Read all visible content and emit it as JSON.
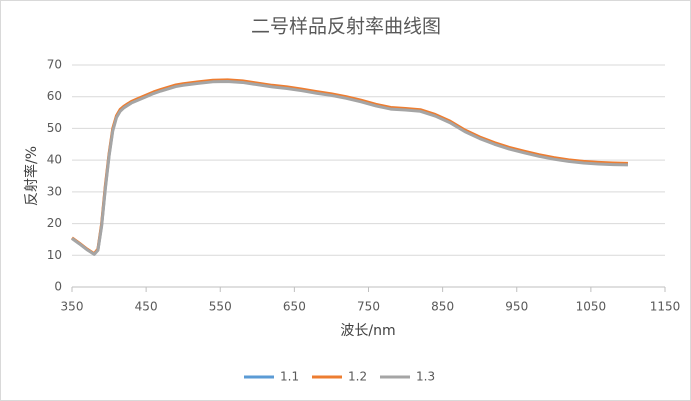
{
  "chart_data": {
    "type": "line",
    "title": "二号样品反射率曲线图",
    "x_label": "波长/nm",
    "y_label": "反射率/%",
    "x": [
      350,
      360,
      370,
      380,
      385,
      390,
      395,
      400,
      405,
      410,
      415,
      420,
      430,
      440,
      450,
      460,
      470,
      480,
      490,
      500,
      520,
      540,
      560,
      580,
      600,
      620,
      640,
      660,
      680,
      700,
      720,
      740,
      760,
      780,
      800,
      820,
      840,
      860,
      880,
      900,
      920,
      940,
      960,
      980,
      1000,
      1020,
      1040,
      1060,
      1080,
      1100
    ],
    "series": [
      {
        "name": "1.1",
        "color": "#5b9bd5",
        "values": [
          15.4,
          13.7,
          11.9,
          10.4,
          11.8,
          19.6,
          31.5,
          41.6,
          49.6,
          53.7,
          55.7,
          56.8,
          58.3,
          59.3,
          60.3,
          61.3,
          62.1,
          62.8,
          63.5,
          63.9,
          64.5,
          65,
          65.1,
          64.8,
          64.1,
          63.4,
          62.9,
          62.2,
          61.4,
          60.7,
          59.8,
          58.7,
          57.4,
          56.4,
          56.1,
          55.7,
          54.2,
          52.1,
          49.3,
          47.1,
          45.3,
          43.8,
          42.6,
          41.5,
          40.6,
          39.9,
          39.4,
          39.1,
          38.9,
          38.8
        ]
      },
      {
        "name": "1.2",
        "color": "#ed7d31",
        "values": [
          15.5,
          13.8,
          12,
          10.5,
          12,
          20,
          32,
          42,
          50,
          54,
          56,
          57,
          58.5,
          59.5,
          60.5,
          61.5,
          62.3,
          63,
          63.7,
          64.1,
          64.7,
          65.2,
          65.3,
          65,
          64.3,
          63.6,
          63.1,
          62.4,
          61.6,
          60.9,
          60,
          58.9,
          57.6,
          56.6,
          56.3,
          55.9,
          54.4,
          52.3,
          49.5,
          47.3,
          45.5,
          44,
          42.8,
          41.7,
          40.8,
          40.1,
          39.6,
          39.3,
          39.1,
          39
        ]
      },
      {
        "name": "1.3",
        "color": "#a5a5a5",
        "values": [
          15.3,
          13.6,
          11.8,
          10.3,
          11.6,
          19.2,
          31,
          41.2,
          49.2,
          53.4,
          55.4,
          56.5,
          58,
          59,
          60,
          61,
          61.8,
          62.5,
          63.2,
          63.6,
          64.2,
          64.7,
          64.8,
          64.5,
          63.8,
          63.1,
          62.6,
          61.9,
          61.1,
          60.4,
          59.5,
          58.4,
          57.1,
          56.1,
          55.8,
          55.4,
          53.9,
          51.8,
          49,
          46.8,
          45,
          43.5,
          42.3,
          41.2,
          40.3,
          39.6,
          39.1,
          38.8,
          38.6,
          38.5
        ]
      }
    ],
    "xlim": [
      350,
      1150
    ],
    "xticks": [
      350,
      450,
      550,
      650,
      750,
      850,
      950,
      1050,
      1150
    ],
    "ylim": [
      0,
      70
    ],
    "yticks": [
      0,
      10,
      20,
      30,
      40,
      50,
      60,
      70
    ],
    "grid": true,
    "legend": "bottom"
  }
}
